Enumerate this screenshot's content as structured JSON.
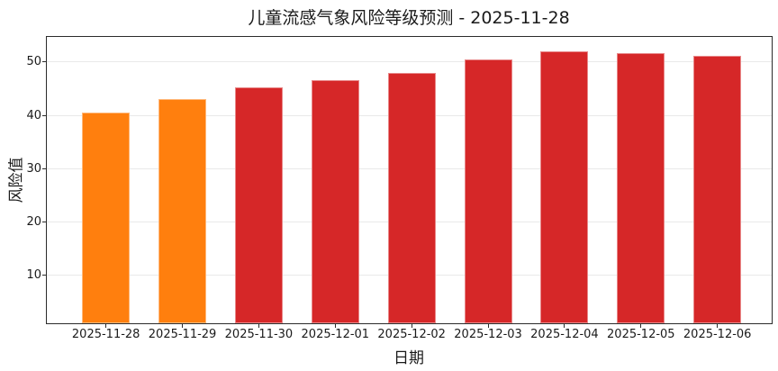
{
  "figure": {
    "background": "#ffffff"
  },
  "chart_data": {
    "type": "bar",
    "title": "儿童流感气象风险等级预测 - 2025-11-28",
    "xlabel": "日期",
    "ylabel": "风险值",
    "categories": [
      "2025-11-28",
      "2025-11-29",
      "2025-11-30",
      "2025-12-01",
      "2025-12-02",
      "2025-12-03",
      "2025-12-04",
      "2025-12-05",
      "2025-12-06"
    ],
    "values": [
      40.5,
      43.0,
      45.2,
      46.6,
      48.0,
      50.4,
      52.0,
      51.7,
      51.2
    ],
    "bar_colors": [
      "#FF7F0E",
      "#FF7F0E",
      "#D62728",
      "#D62728",
      "#D62728",
      "#D62728",
      "#D62728",
      "#D62728",
      "#D62728"
    ],
    "yticks": [
      10,
      20,
      30,
      40,
      50
    ],
    "ylim": [
      1.0,
      54.7
    ],
    "grid": "horizontal-light",
    "legend": "none",
    "colors": {
      "orange_risk": "#FF7F0E",
      "red_risk": "#D62728",
      "gridline": "#E9E9E9",
      "spine": "#2B2B2B",
      "text": "#1A1A1A"
    }
  }
}
